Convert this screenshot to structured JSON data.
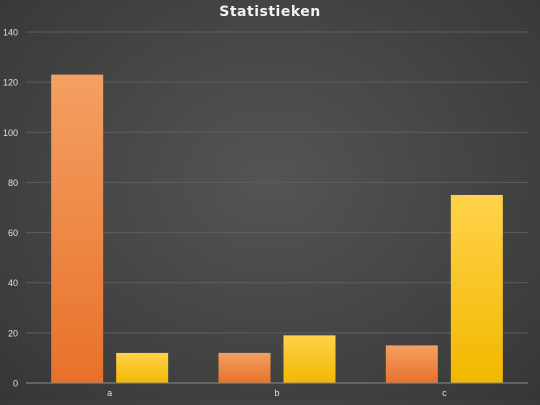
{
  "chart_data": {
    "type": "bar",
    "title": "Statistieken",
    "xlabel": "",
    "ylabel": "",
    "categories": [
      "a",
      "b",
      "c"
    ],
    "series": [
      {
        "values": [
          123,
          12,
          15
        ]
      },
      {
        "values": [
          12,
          19,
          75
        ]
      }
    ],
    "ylim": [
      0,
      140
    ],
    "yticks": [
      0,
      20,
      40,
      60,
      80,
      100,
      120,
      140
    ],
    "grid": true,
    "legend": "none",
    "colors": {
      "series_0": [
        "#f4a062",
        "#e8712a"
      ],
      "series_1": [
        "#ffd24a",
        "#f2b800"
      ],
      "gridline": "#5e5e5e",
      "axis": "#8a8a8a",
      "tick_label": "#e0e0e0"
    }
  }
}
